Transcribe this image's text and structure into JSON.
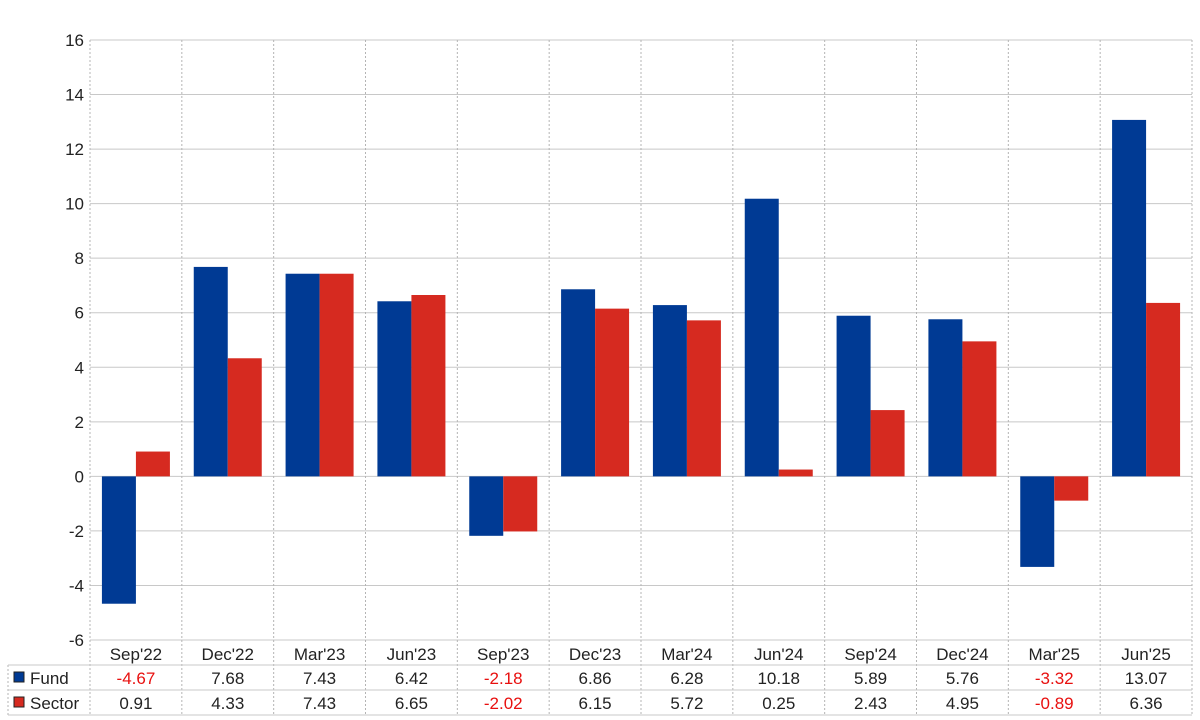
{
  "chart_data": {
    "type": "bar",
    "categories": [
      "Sep'22",
      "Dec'22",
      "Mar'23",
      "Jun'23",
      "Sep'23",
      "Dec'23",
      "Mar'24",
      "Jun'24",
      "Sep'24",
      "Dec'24",
      "Mar'25",
      "Jun'25"
    ],
    "series": [
      {
        "name": "Fund",
        "color": "#003a94",
        "values": [
          -4.67,
          7.68,
          7.43,
          6.42,
          -2.18,
          6.86,
          6.28,
          10.18,
          5.89,
          5.76,
          -3.32,
          13.07
        ],
        "labels": [
          "-4.67",
          "7.68",
          "7.43",
          "6.42",
          "-2.18",
          "6.86",
          "6.28",
          "10.18",
          "5.89",
          "5.76",
          "-3.32",
          "13.07"
        ]
      },
      {
        "name": "Sector",
        "color": "#d62a20",
        "values": [
          0.91,
          4.33,
          7.43,
          6.65,
          -2.02,
          6.15,
          5.72,
          0.25,
          2.43,
          4.95,
          -0.89,
          6.36
        ],
        "labels": [
          "0.91",
          "4.33",
          "7.43",
          "6.65",
          "-2.02",
          "6.15",
          "5.72",
          "0.25",
          "2.43",
          "4.95",
          "-0.89",
          "6.36"
        ]
      }
    ],
    "yticks": [
      "16",
      "14",
      "12",
      "10",
      "8",
      "6",
      "4",
      "2",
      "0",
      "-2",
      "-4",
      "-6"
    ],
    "ylim": [
      -6,
      16
    ],
    "grid": true,
    "legend_placement": "table-below",
    "negative_value_color": "#e8100f"
  }
}
